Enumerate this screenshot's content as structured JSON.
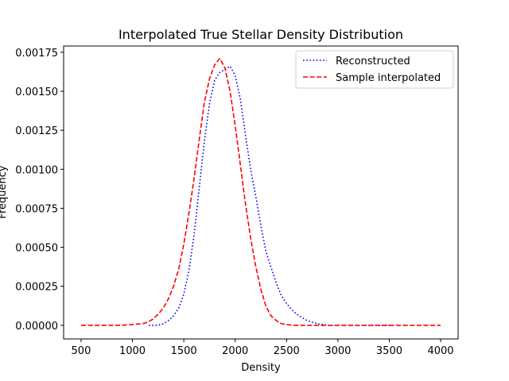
{
  "chart_data": {
    "type": "line",
    "title": "Interpolated True Stellar Density Distribution",
    "xlabel": "Density",
    "ylabel": "Frequency",
    "xlim": [
      330,
      4170
    ],
    "ylim": [
      -8.75e-05,
      0.00179
    ],
    "x_ticks": [
      500,
      1000,
      1500,
      2000,
      2500,
      3000,
      3500,
      4000
    ],
    "y_ticks": [
      0,
      0.00025,
      0.0005,
      0.00075,
      0.001,
      0.00125,
      0.0015,
      0.00175
    ],
    "x_tick_labels": [
      "500",
      "1000",
      "1500",
      "2000",
      "2500",
      "3000",
      "3500",
      "4000"
    ],
    "y_tick_labels": [
      "0.00000",
      "0.00025",
      "0.00050",
      "0.00075",
      "0.00100",
      "0.00125",
      "0.00150",
      "0.00175"
    ],
    "grid": false,
    "legend_position": "upper right",
    "series": [
      {
        "name": "Reconstructed",
        "color": "#0000ff",
        "style": "dotted",
        "x": [
          1160,
          1250,
          1300,
          1350,
          1400,
          1450,
          1500,
          1550,
          1600,
          1650,
          1700,
          1750,
          1800,
          1850,
          1900,
          1950,
          2000,
          2050,
          2100,
          2150,
          2200,
          2250,
          2300,
          2350,
          2400,
          2450,
          2500,
          2550,
          2600,
          2700,
          2800,
          2900,
          3000,
          3200,
          3500
        ],
        "y": [
          0.0,
          0.0,
          1e-05,
          3e-05,
          6e-05,
          0.00011,
          0.0002,
          0.00035,
          0.00058,
          0.00088,
          0.00118,
          0.00142,
          0.00157,
          0.00162,
          0.00164,
          0.00166,
          0.0016,
          0.00145,
          0.00122,
          0.001,
          0.00083,
          0.00064,
          0.00047,
          0.00037,
          0.00027,
          0.00019,
          0.00014,
          0.0001,
          7e-05,
          3e-05,
          1e-05,
          0.0,
          0.0,
          0.0,
          0.0
        ]
      },
      {
        "name": "Sample interpolated",
        "color": "#ff0000",
        "style": "dashed",
        "x": [
          500,
          900,
          1000,
          1100,
          1150,
          1200,
          1250,
          1300,
          1350,
          1400,
          1450,
          1500,
          1550,
          1600,
          1650,
          1700,
          1750,
          1800,
          1850,
          1900,
          1950,
          2000,
          2050,
          2100,
          2150,
          2200,
          2250,
          2300,
          2350,
          2400,
          2450,
          2500,
          2550,
          2600,
          2700,
          3000,
          3500,
          4000
        ],
        "y": [
          0.0,
          0.0,
          5e-06,
          1e-05,
          2e-05,
          4e-05,
          7e-05,
          0.00011,
          0.00017,
          0.00025,
          0.00036,
          0.00052,
          0.00072,
          0.00094,
          0.00119,
          0.00143,
          0.00158,
          0.00167,
          0.00171,
          0.00165,
          0.0015,
          0.00128,
          0.00103,
          0.00078,
          0.00056,
          0.00038,
          0.00023,
          0.00012,
          6e-05,
          3e-05,
          1e-05,
          5e-06,
          0.0,
          0.0,
          0.0,
          0.0,
          0.0,
          0.0
        ]
      }
    ]
  }
}
